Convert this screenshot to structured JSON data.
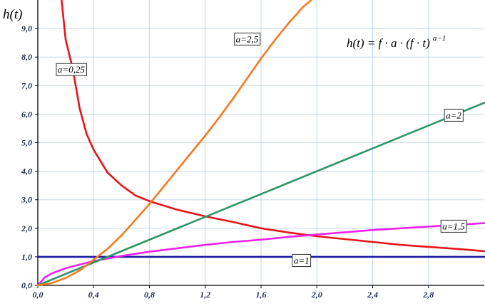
{
  "chart_data": {
    "type": "line",
    "ylabel": "h(t)",
    "formula": {
      "lhs": "h(t) = ",
      "body": "f · a · (f · t)",
      "exponent": "a−1"
    },
    "xlim": [
      0,
      3.2
    ],
    "ylim": [
      0,
      10
    ],
    "xticks": [
      {
        "value": 0.0,
        "label": "0,0"
      },
      {
        "value": 0.4,
        "label": "0,4"
      },
      {
        "value": 0.8,
        "label": "0,8"
      },
      {
        "value": 1.2,
        "label": "1,2"
      },
      {
        "value": 1.6,
        "label": "1,6"
      },
      {
        "value": 2.0,
        "label": "2,0"
      },
      {
        "value": 2.4,
        "label": "2,4"
      },
      {
        "value": 2.8,
        "label": "2,8"
      }
    ],
    "yticks": [
      {
        "value": 0,
        "label": "0,0"
      },
      {
        "value": 1,
        "label": "1,0"
      },
      {
        "value": 2,
        "label": "2,0"
      },
      {
        "value": 3,
        "label": "3,0"
      },
      {
        "value": 4,
        "label": "4,0"
      },
      {
        "value": 5,
        "label": "5,0"
      },
      {
        "value": 6,
        "label": "6,0"
      },
      {
        "value": 7,
        "label": "7,0"
      },
      {
        "value": 8,
        "label": "8,0"
      },
      {
        "value": 9,
        "label": "9,0"
      }
    ],
    "grid": true,
    "series": [
      {
        "name": "a=0,25",
        "color": "#e8141b",
        "x": [
          0.17,
          0.2,
          0.25,
          0.3,
          0.35,
          0.4,
          0.5,
          0.6,
          0.7,
          0.8,
          1.0,
          1.2,
          1.4,
          1.6,
          1.8,
          2.0,
          2.2,
          2.4,
          2.6,
          2.8,
          3.0,
          3.2
        ],
        "y": [
          10.0,
          8.6,
          7.6,
          6.2,
          5.3,
          4.75,
          3.95,
          3.5,
          3.15,
          2.95,
          2.65,
          2.42,
          2.22,
          2.0,
          1.85,
          1.72,
          1.62,
          1.52,
          1.42,
          1.35,
          1.28,
          1.2
        ]
      },
      {
        "name": "a=1",
        "color": "#1a1aa0",
        "x": [
          0.0,
          3.2
        ],
        "y": [
          1.0,
          1.0
        ]
      },
      {
        "name": "a=1,5",
        "color": "#ee22ee",
        "x": [
          0.0,
          0.05,
          0.1,
          0.2,
          0.3,
          0.4,
          0.6,
          0.8,
          1.0,
          1.2,
          1.4,
          1.6,
          1.8,
          2.0,
          2.2,
          2.4,
          2.6,
          2.8,
          3.0,
          3.2
        ],
        "y": [
          0.0,
          0.28,
          0.42,
          0.6,
          0.73,
          0.85,
          1.03,
          1.18,
          1.3,
          1.42,
          1.52,
          1.6,
          1.7,
          1.78,
          1.86,
          1.94,
          2.0,
          2.06,
          2.12,
          2.18
        ]
      },
      {
        "name": "a=2",
        "color": "#2e9466",
        "x": [
          0.0,
          3.2
        ],
        "y": [
          0.0,
          6.4
        ]
      },
      {
        "name": "a=2,5",
        "color": "#f47a20",
        "x": [
          0.0,
          0.1,
          0.2,
          0.3,
          0.4,
          0.5,
          0.6,
          0.7,
          0.8,
          0.9,
          1.0,
          1.1,
          1.2,
          1.3,
          1.4,
          1.5,
          1.6,
          1.7,
          1.8,
          1.9,
          1.96
        ],
        "y": [
          0.0,
          0.08,
          0.26,
          0.52,
          0.9,
          1.28,
          1.75,
          2.3,
          2.85,
          3.45,
          4.05,
          4.65,
          5.25,
          5.88,
          6.55,
          7.25,
          7.95,
          8.6,
          9.2,
          9.75,
          10.0
        ]
      }
    ],
    "tags": [
      {
        "text": "a=0,25",
        "x": 0.24,
        "y": 7.55
      },
      {
        "text": "a=2,5",
        "x": 1.5,
        "y": 8.62
      },
      {
        "text": "a=2",
        "x": 2.98,
        "y": 5.95
      },
      {
        "text": "a=1,5",
        "x": 2.98,
        "y": 2.06
      },
      {
        "text": "a=1",
        "x": 1.89,
        "y": 0.86
      }
    ]
  }
}
